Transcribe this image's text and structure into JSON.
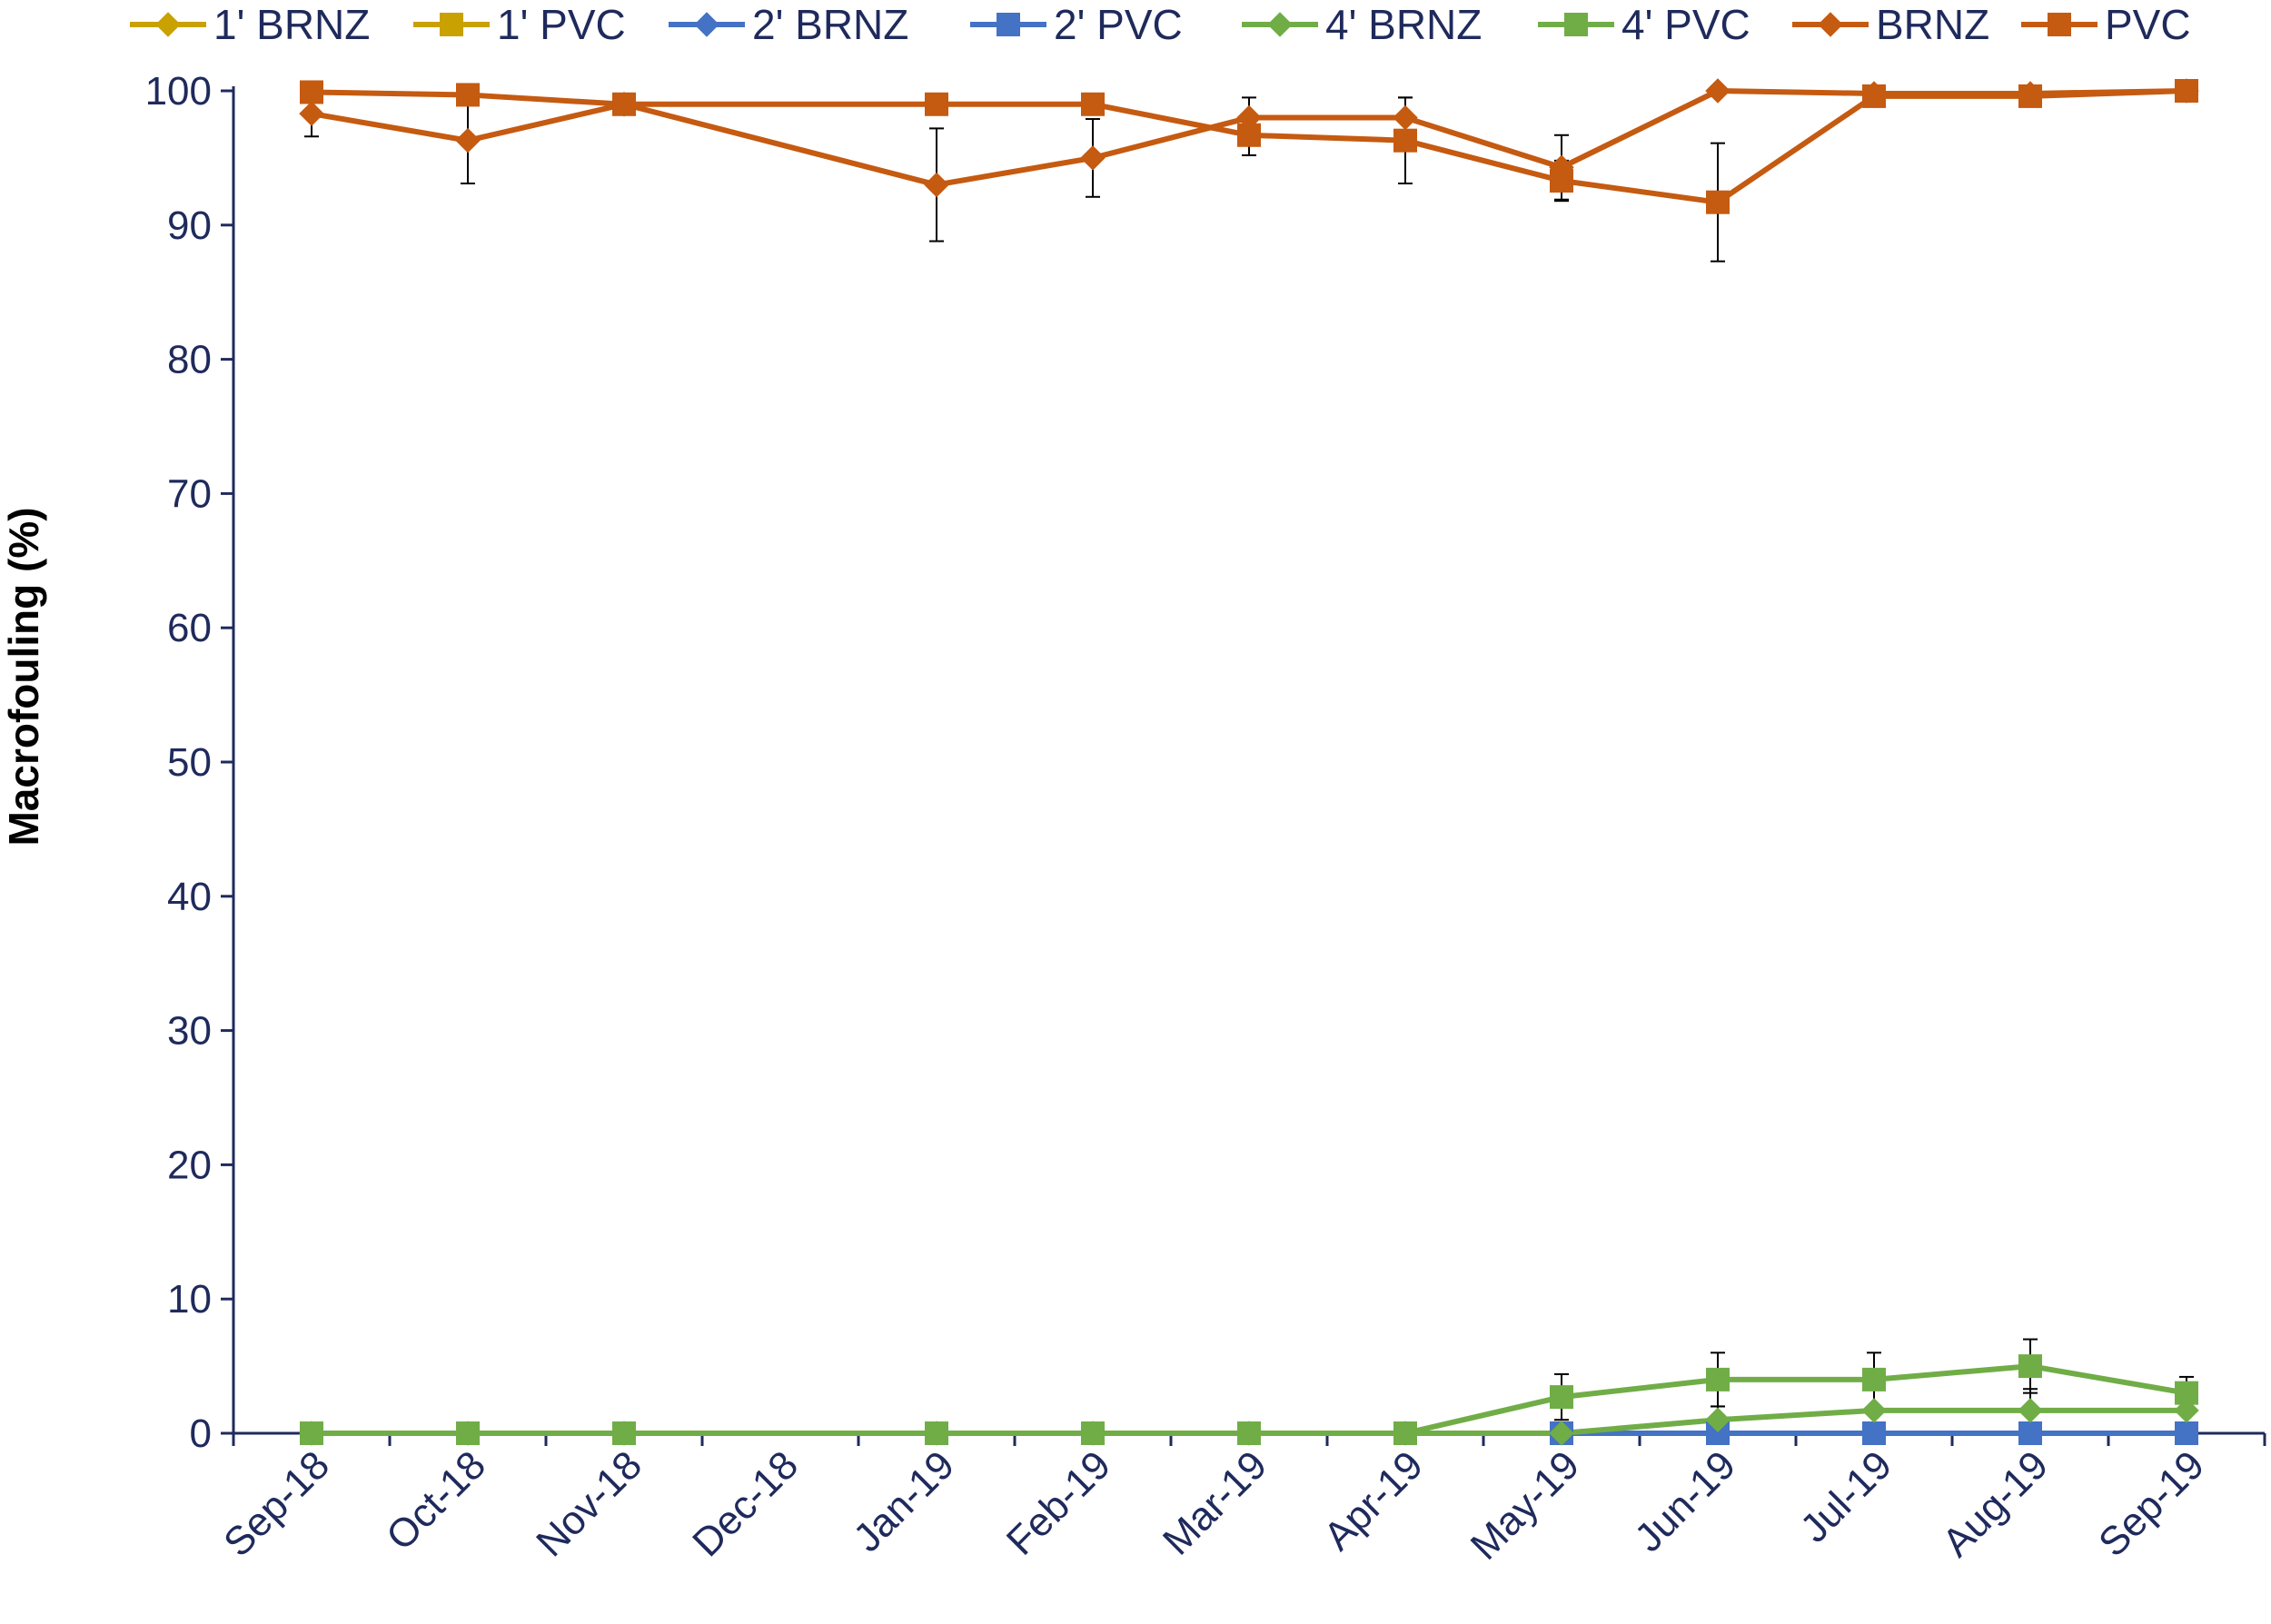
{
  "chart_data": {
    "type": "line",
    "title": "",
    "xlabel": "",
    "ylabel": "Macrofouling (%)",
    "ylim": [
      0,
      100
    ],
    "yticks": [
      0,
      10,
      20,
      30,
      40,
      50,
      60,
      70,
      80,
      90,
      100
    ],
    "ytick_labels": [
      "0",
      "10",
      "20",
      "30",
      "40",
      "50",
      "60",
      "70",
      "80",
      "90",
      "100"
    ],
    "categories": [
      "Sep-18",
      "Oct-18",
      "Nov-18",
      "Dec-18",
      "Jan-19",
      "Feb-19",
      "Mar-19",
      "Apr-19",
      "May-19",
      "Jun-19",
      "Jul-19",
      "Aug-19",
      "Sep-19"
    ],
    "grid": false,
    "legend_position": "top",
    "text_color": "#1f2a5c",
    "series": [
      {
        "name": "1' BRNZ",
        "color": "#c9a100",
        "marker": "diamond",
        "values": [
          null,
          null,
          null,
          null,
          null,
          null,
          null,
          null,
          null,
          null,
          null,
          null,
          null
        ]
      },
      {
        "name": "1' PVC",
        "color": "#c9a100",
        "marker": "square",
        "values": [
          null,
          null,
          null,
          null,
          null,
          null,
          null,
          null,
          null,
          null,
          null,
          null,
          null
        ]
      },
      {
        "name": "2' BRNZ",
        "color": "#4472c4",
        "marker": "diamond",
        "values": [
          null,
          null,
          null,
          null,
          null,
          null,
          null,
          null,
          null,
          null,
          null,
          null,
          null
        ]
      },
      {
        "name": "2' PVC",
        "color": "#4472c4",
        "marker": "square",
        "values": [
          null,
          null,
          null,
          null,
          null,
          null,
          null,
          null,
          0,
          0,
          0,
          0,
          0
        ]
      },
      {
        "name": "4' BRNZ",
        "color": "#70ad47",
        "marker": "diamond",
        "values": [
          0,
          0,
          0,
          null,
          0,
          0,
          0,
          0,
          0,
          1,
          1.7,
          1.7,
          1.7
        ]
      },
      {
        "name": "4' PVC",
        "color": "#70ad47",
        "marker": "square",
        "values": [
          0,
          0,
          0,
          null,
          0,
          0,
          0,
          0,
          2.7,
          4,
          4,
          5,
          3
        ]
      },
      {
        "name": "BRNZ",
        "color": "#c55a11",
        "marker": "diamond",
        "values": [
          98.3,
          96.3,
          99,
          null,
          93,
          95,
          98,
          98,
          94.3,
          100,
          99.8,
          99.8,
          100
        ],
        "errors": [
          1.7,
          3.2,
          0,
          null,
          4.2,
          2.9,
          1.5,
          1.5,
          2.4,
          0,
          0,
          0,
          0
        ]
      },
      {
        "name": "PVC",
        "color": "#c55a11",
        "marker": "square",
        "values": [
          99.9,
          99.7,
          99,
          null,
          99,
          99,
          96.7,
          96.3,
          93.3,
          91.7,
          99.6,
          99.6,
          100
        ],
        "errors": [
          0,
          0,
          0,
          null,
          0,
          0,
          1.5,
          3.2,
          1.5,
          4.4,
          0,
          0,
          0
        ]
      }
    ],
    "extra_error_bars": [
      {
        "series": "4' PVC",
        "errors": [
          0,
          0,
          0,
          null,
          0,
          0,
          0,
          0,
          1.7,
          2,
          2,
          2,
          1.2
        ]
      },
      {
        "series": "4' BRNZ",
        "errors": [
          0,
          0,
          0,
          null,
          0,
          0,
          0,
          0,
          0,
          1,
          0,
          1.6,
          0
        ]
      }
    ]
  }
}
